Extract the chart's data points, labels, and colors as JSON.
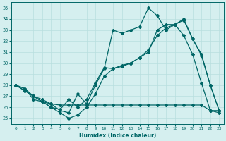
{
  "xlabel": "Humidex (Indice chaleur)",
  "bg_color": "#d5efef",
  "grid_color": "#b8dede",
  "line_color": "#006666",
  "xlim": [
    -0.5,
    23.5
  ],
  "ylim": [
    24.5,
    35.5
  ],
  "xticks": [
    0,
    1,
    2,
    3,
    4,
    5,
    6,
    7,
    8,
    9,
    10,
    11,
    12,
    13,
    14,
    15,
    16,
    17,
    18,
    19,
    20,
    21,
    22,
    23
  ],
  "yticks": [
    25,
    26,
    27,
    28,
    29,
    30,
    31,
    32,
    33,
    34,
    35
  ],
  "line_flat": [
    28,
    27.7,
    26.7,
    26.5,
    26.3,
    26.2,
    26.2,
    26.2,
    26.2,
    26.2,
    26.2,
    26.2,
    26.2,
    26.2,
    26.2,
    26.2,
    26.2,
    26.2,
    26.2,
    26.2,
    26.2,
    26.2,
    25.7,
    25.7
  ],
  "line_high": [
    28,
    27.7,
    27.0,
    26.7,
    26.3,
    25.7,
    25.5,
    27.2,
    26.3,
    28.0,
    29.5,
    33.0,
    32.7,
    33.0,
    33.3,
    35.0,
    34.3,
    33.0,
    33.5,
    33.9,
    32.2,
    30.7,
    28.0,
    25.7
  ],
  "line_mid_upper": [
    28,
    27.5,
    27.0,
    26.5,
    26.0,
    25.8,
    26.7,
    26.0,
    26.7,
    28.2,
    29.6,
    29.5,
    29.8,
    30.0,
    30.5,
    31.0,
    33.0,
    33.5,
    33.5,
    34.0,
    32.2,
    30.8,
    28.0,
    25.7
  ],
  "line_trend": [
    28,
    27.5,
    27.0,
    26.5,
    26.0,
    25.5,
    25.0,
    25.3,
    26.0,
    27.2,
    28.8,
    29.5,
    29.7,
    30.0,
    30.5,
    31.2,
    32.5,
    33.2,
    33.5,
    32.5,
    30.8,
    28.2,
    25.7,
    25.5
  ]
}
